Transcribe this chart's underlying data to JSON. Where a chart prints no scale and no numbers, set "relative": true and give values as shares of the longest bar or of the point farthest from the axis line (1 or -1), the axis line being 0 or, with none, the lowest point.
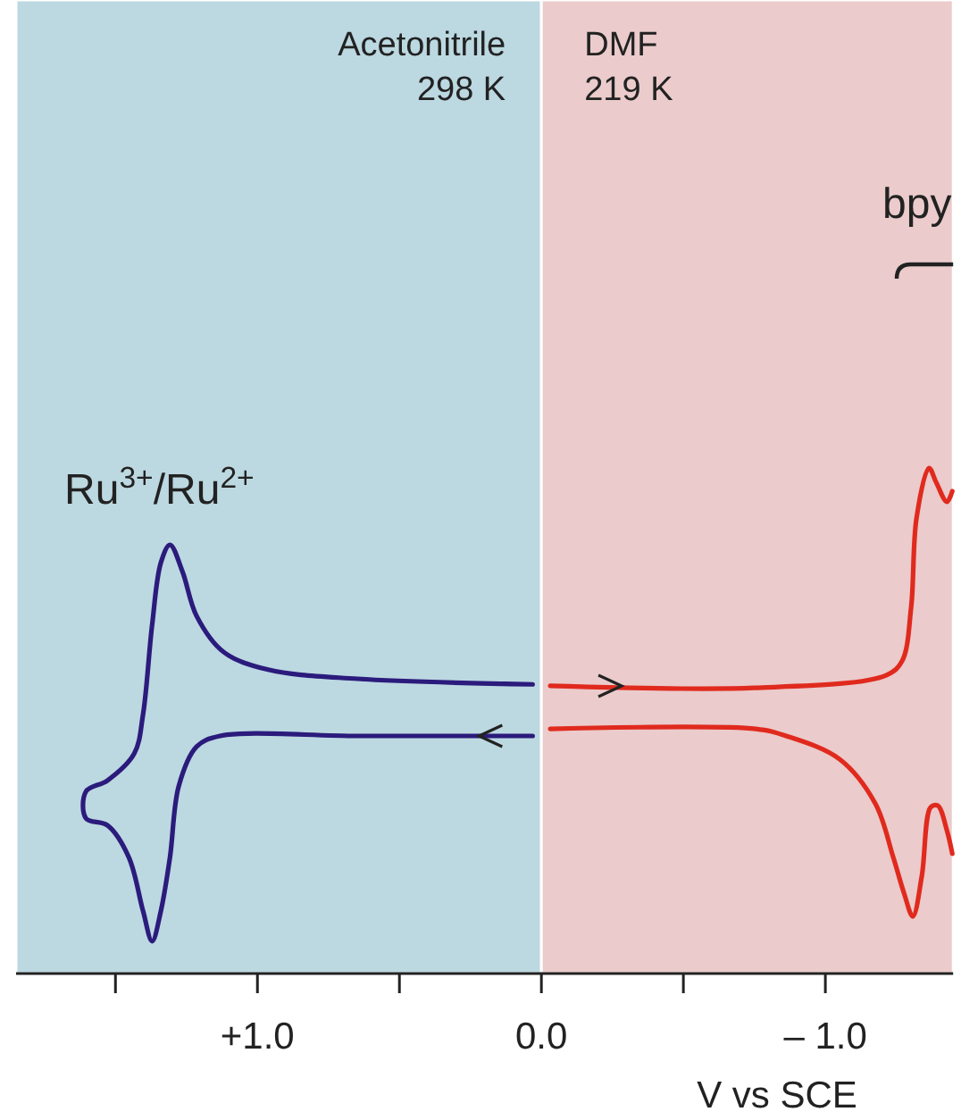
{
  "chart_data": {
    "type": "line",
    "relative": true,
    "xlabel": "V vs SCE",
    "xlim": [
      1.85,
      -1.45
    ],
    "xticks": [
      {
        "value": 1.5,
        "label": null
      },
      {
        "value": 1.0,
        "label": "+1.0"
      },
      {
        "value": 0.5,
        "label": null
      },
      {
        "value": 0.0,
        "label": "0.0"
      },
      {
        "value": -0.5,
        "label": null
      },
      {
        "value": -1.0,
        "label": "– 1.0"
      }
    ],
    "tick_labels": "x",
    "grid": false,
    "marker": "none",
    "line_style": "solid",
    "bands": [
      {
        "axis": "x",
        "from": 1.85,
        "to": 0.0,
        "label": "Acetonitrile\n298 K",
        "color": "#bcd8e1"
      },
      {
        "axis": "x",
        "from": 0.0,
        "to": -1.45,
        "label": "DMF\n219 K",
        "color": "#ebcbcb"
      }
    ],
    "annotations": [
      "Ru$^{3+}$/Ru$^{2+}$",
      "bpy"
    ],
    "series": [
      {
        "color": "#2b1b7c",
        "x": [
          0.031,
          0.648,
          1.132,
          1.214,
          1.277,
          1.308,
          1.34,
          1.371,
          1.403,
          1.453,
          1.528,
          1.604,
          1.604,
          1.528,
          1.434,
          1.403,
          1.371,
          1.34,
          1.308,
          1.264,
          1.214,
          1.119,
          0.962,
          0.648,
          0.031
        ],
        "values": [
          0.47,
          0.47,
          0.47,
          0.449,
          0.371,
          0.23,
          0.124,
          0.064,
          0.124,
          0.23,
          0.293,
          0.307,
          0.36,
          0.382,
          0.435,
          0.512,
          0.689,
          0.813,
          0.848,
          0.795,
          0.707,
          0.636,
          0.601,
          0.583,
          0.572
        ]
      },
      {
        "color": "#e02a1e",
        "x": [
          -0.031,
          -0.748,
          -1.214,
          -1.27,
          -1.302,
          -1.321,
          -1.365,
          -1.39,
          -1.428,
          -1.447,
          null,
          -1.447,
          -1.428,
          -1.396,
          -1.371,
          -1.34,
          -1.308,
          -1.277,
          -1.239,
          -1.176,
          -1.05,
          -0.862,
          -0.755,
          -0.031
        ],
        "values": [
          0.569,
          0.565,
          0.59,
          0.618,
          0.724,
          0.901,
          1.0,
          0.972,
          0.933,
          0.954,
          null,
          0.237,
          0.283,
          0.332,
          0.329,
          0.194,
          0.113,
          0.159,
          0.23,
          0.336,
          0.424,
          0.47,
          0.484,
          0.484
        ]
      }
    ]
  }
}
